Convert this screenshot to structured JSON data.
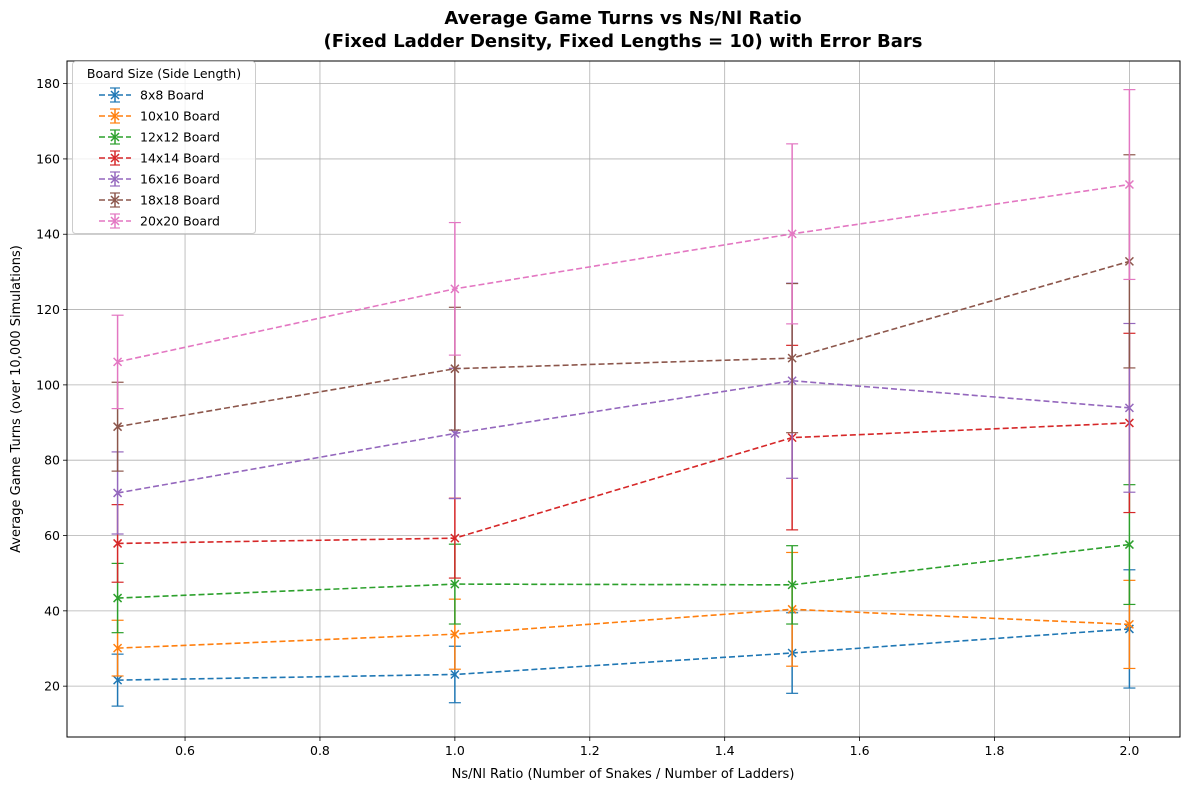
{
  "chart_data": {
    "type": "line",
    "title_line1": "Average Game Turns vs Ns/Nl Ratio",
    "title_line2": "(Fixed Ladder Density, Fixed Lengths = 10) with Error Bars",
    "xlabel": "Ns/Nl Ratio (Number of Snakes / Number of Ladders)",
    "ylabel": "Average Game Turns (over 10,000 Simulations)",
    "xlim": [
      0.425,
      2.075
    ],
    "ylim": [
      6.5,
      186
    ],
    "x_ticks": [
      0.6,
      0.8,
      1.0,
      1.2,
      1.4,
      1.6,
      1.8,
      2.0
    ],
    "x_tick_labels": [
      "0.6",
      "0.8",
      "1.0",
      "1.2",
      "1.4",
      "1.6",
      "1.8",
      "2.0"
    ],
    "y_ticks": [
      20,
      40,
      60,
      80,
      100,
      120,
      140,
      160,
      180
    ],
    "y_tick_labels": [
      "20",
      "40",
      "60",
      "80",
      "100",
      "120",
      "140",
      "160",
      "180"
    ],
    "grid": true,
    "legend_title": "Board Size (Side Length)",
    "legend_position": "top-left",
    "x": [
      0.5,
      1.0,
      1.5,
      2.0
    ],
    "series": [
      {
        "name": "8x8 Board",
        "color": "#1f77b4",
        "values": [
          21.6,
          23.1,
          28.8,
          35.2
        ],
        "errors": [
          6.9,
          7.5,
          10.7,
          15.7
        ]
      },
      {
        "name": "10x10 Board",
        "color": "#ff7f0e",
        "values": [
          30.1,
          33.8,
          40.4,
          36.4
        ],
        "errors": [
          7.4,
          9.3,
          15.1,
          11.7
        ]
      },
      {
        "name": "12x12 Board",
        "color": "#2ca02c",
        "values": [
          43.4,
          47.1,
          46.9,
          57.6
        ],
        "errors": [
          9.2,
          10.6,
          10.4,
          15.9
        ]
      },
      {
        "name": "14x14 Board",
        "color": "#d62728",
        "values": [
          57.9,
          59.3,
          86.0,
          89.9
        ],
        "errors": [
          10.3,
          10.6,
          24.5,
          23.8
        ]
      },
      {
        "name": "16x16 Board",
        "color": "#9467bd",
        "values": [
          71.3,
          87.1,
          101.1,
          93.9
        ],
        "errors": [
          10.9,
          17.3,
          25.9,
          22.4
        ]
      },
      {
        "name": "18x18 Board",
        "color": "#8c564b",
        "values": [
          88.9,
          104.3,
          107.1,
          132.8
        ],
        "errors": [
          11.8,
          16.3,
          19.8,
          28.3
        ]
      },
      {
        "name": "20x20 Board",
        "color": "#e377c2",
        "values": [
          106.1,
          125.5,
          140.1,
          153.2
        ],
        "errors": [
          12.4,
          17.6,
          23.9,
          25.2
        ]
      }
    ]
  }
}
